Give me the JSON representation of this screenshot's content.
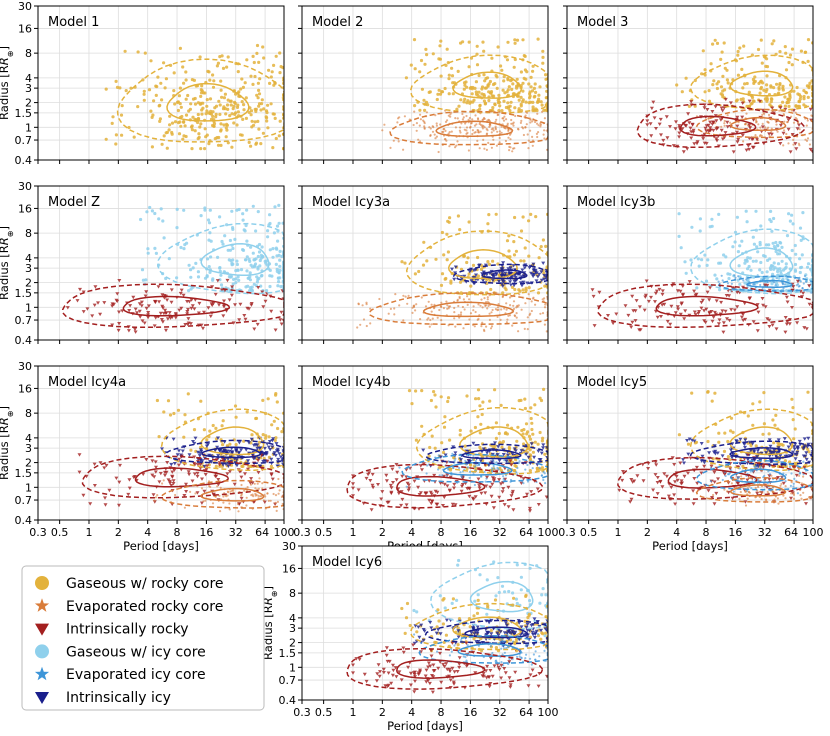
{
  "colors": {
    "gas_rocky": "#E3B23C",
    "evap_rocky": "#D97C3A",
    "intrinsic_rocky": "#A31F1F",
    "gas_icy": "#8FD0EC",
    "evap_icy": "#3D95D8",
    "intrinsic_icy": "#1A1F8C",
    "grid": "#dddddd"
  },
  "chart_data": {
    "type": "scatter",
    "xlabel": "Period [days]",
    "ylabel": "Radius [R⊕]",
    "ylabel_main": "Radius [R",
    "ylabel_sub": "⊕",
    "ylabel_end": "]",
    "xscale": "log",
    "yscale": "log",
    "xlim": [
      0.3,
      100
    ],
    "ylim": [
      0.4,
      30
    ],
    "xticks": [
      0.3,
      0.5,
      1,
      2,
      4,
      8,
      16,
      32,
      64,
      100
    ],
    "xtick_labels": [
      "0.3",
      "0.5",
      "1",
      "2",
      "4",
      "8",
      "16",
      "32",
      "64",
      "100"
    ],
    "yticks": [
      0.4,
      0.7,
      1,
      1.5,
      2,
      3,
      4,
      8,
      16,
      30
    ],
    "ytick_labels": [
      "0.4",
      "0.7",
      "1",
      "1.5",
      "2",
      "3",
      "4",
      "8",
      "16",
      "30"
    ],
    "grid": true,
    "legend": {
      "placement": "bottom-left",
      "entries": [
        {
          "key": "gas_rocky",
          "label": "Gaseous w/ rocky core",
          "marker": "circle"
        },
        {
          "key": "evap_rocky",
          "label": "Evaporated rocky core",
          "marker": "star"
        },
        {
          "key": "intrinsic_rocky",
          "label": "Intrinsically rocky",
          "marker": "triangle"
        },
        {
          "key": "gas_icy",
          "label": "Gaseous w/ icy core",
          "marker": "circle"
        },
        {
          "key": "evap_icy",
          "label": "Evaporated icy core",
          "marker": "star"
        },
        {
          "key": "intrinsic_icy",
          "label": "Intrinsically icy",
          "marker": "triangle"
        }
      ]
    },
    "panels": [
      {
        "name": "Model 1",
        "populations": [
          {
            "type": "gas_rocky",
            "n": 750,
            "P": [
              1.5,
              100
            ],
            "R": [
              0.55,
              10
            ],
            "center": [
              20,
              1.6
            ]
          }
        ]
      },
      {
        "name": "Model 2",
        "populations": [
          {
            "type": "gas_rocky",
            "n": 600,
            "P": [
              3,
              100
            ],
            "R": [
              1.6,
              12
            ],
            "center": [
              30,
              2.3
            ]
          },
          {
            "type": "evap_rocky",
            "n": 600,
            "P": [
              2,
              100
            ],
            "R": [
              0.5,
              1.6
            ],
            "center": [
              20,
              1.0
            ]
          }
        ]
      },
      {
        "name": "Model 3",
        "populations": [
          {
            "type": "gas_rocky",
            "n": 450,
            "P": [
              4,
              100
            ],
            "R": [
              1.8,
              12
            ],
            "center": [
              40,
              2.4
            ]
          },
          {
            "type": "evap_rocky",
            "n": 250,
            "P": [
              6,
              100
            ],
            "R": [
              0.6,
              1.6
            ],
            "center": [
              30,
              1.2
            ]
          },
          {
            "type": "intrinsic_rocky",
            "n": 350,
            "P": [
              2,
              100
            ],
            "R": [
              0.5,
              2.2
            ],
            "center": [
              8,
              1.0
            ]
          }
        ]
      },
      {
        "name": "Model Z",
        "populations": [
          {
            "type": "gas_icy",
            "n": 600,
            "P": [
              3,
              100
            ],
            "R": [
              1.6,
              18
            ],
            "center": [
              50,
              2.6
            ]
          },
          {
            "type": "intrinsic_rocky",
            "n": 350,
            "P": [
              0.4,
              100
            ],
            "R": [
              0.5,
              2.2
            ],
            "center": [
              8,
              1.0
            ]
          }
        ]
      },
      {
        "name": "Model Icy3a",
        "populations": [
          {
            "type": "gas_rocky",
            "n": 350,
            "P": [
              3,
              100
            ],
            "R": [
              1.5,
              14
            ],
            "center": [
              25,
              2.3
            ]
          },
          {
            "type": "intrinsic_icy",
            "n": 300,
            "P": [
              10,
              100
            ],
            "R": [
              1.8,
              3.5
            ],
            "center": [
              40,
              2.5
            ]
          },
          {
            "type": "evap_rocky",
            "n": 450,
            "P": [
              1,
              100
            ],
            "R": [
              0.5,
              1.5
            ],
            "center": [
              20,
              1.0
            ]
          }
        ]
      },
      {
        "name": "Model Icy3b",
        "populations": [
          {
            "type": "gas_icy",
            "n": 550,
            "P": [
              4,
              100
            ],
            "R": [
              1.6,
              15
            ],
            "center": [
              40,
              2.4
            ]
          },
          {
            "type": "evap_icy",
            "n": 150,
            "P": [
              10,
              100
            ],
            "R": [
              1.5,
              2.5
            ],
            "center": [
              40,
              1.9
            ]
          },
          {
            "type": "intrinsic_rocky",
            "n": 350,
            "P": [
              0.5,
              100
            ],
            "R": [
              0.5,
              2.2
            ],
            "center": [
              8,
              1.0
            ]
          }
        ]
      },
      {
        "name": "Model Icy4a",
        "populations": [
          {
            "type": "gas_rocky",
            "n": 300,
            "P": [
              4,
              100
            ],
            "R": [
              1.8,
              15
            ],
            "center": [
              40,
              2.5
            ]
          },
          {
            "type": "intrinsic_icy",
            "n": 350,
            "P": [
              5,
              100
            ],
            "R": [
              1.8,
              4
            ],
            "center": [
              35,
              2.6
            ]
          },
          {
            "type": "intrinsic_rocky",
            "n": 300,
            "P": [
              0.8,
              100
            ],
            "R": [
              0.6,
              2.5
            ],
            "center": [
              8,
              1.4
            ]
          },
          {
            "type": "evap_rocky",
            "n": 250,
            "P": [
              4,
              100
            ],
            "R": [
              0.5,
              1.3
            ],
            "center": [
              40,
              0.8
            ]
          }
        ]
      },
      {
        "name": "Model Icy4b",
        "populations": [
          {
            "type": "gas_rocky",
            "n": 450,
            "P": [
              3,
              100
            ],
            "R": [
              1.6,
              16
            ],
            "center": [
              40,
              2.4
            ]
          },
          {
            "type": "intrinsic_rocky",
            "n": 350,
            "P": [
              1,
              100
            ],
            "R": [
              0.5,
              2.2
            ],
            "center": [
              6,
              1.0
            ]
          },
          {
            "type": "evap_icy",
            "n": 250,
            "P": [
              3,
              100
            ],
            "R": [
              1.0,
              2.6
            ],
            "center": [
              20,
              1.7
            ]
          },
          {
            "type": "intrinsic_icy",
            "n": 150,
            "P": [
              5,
              100
            ],
            "R": [
              1.8,
              3.5
            ],
            "center": [
              30,
              2.5
            ]
          }
        ]
      },
      {
        "name": "Model Icy5",
        "populations": [
          {
            "type": "gas_rocky",
            "n": 300,
            "P": [
              4,
              100
            ],
            "R": [
              1.8,
              15
            ],
            "center": [
              40,
              2.5
            ]
          },
          {
            "type": "intrinsic_icy",
            "n": 300,
            "P": [
              4,
              100
            ],
            "R": [
              1.8,
              4
            ],
            "center": [
              40,
              2.5
            ]
          },
          {
            "type": "intrinsic_rocky",
            "n": 300,
            "P": [
              1,
              100
            ],
            "R": [
              0.6,
              2.5
            ],
            "center": [
              8,
              1.3
            ]
          },
          {
            "type": "evap_icy",
            "n": 200,
            "P": [
              6,
              100
            ],
            "R": [
              0.8,
              2.2
            ],
            "center": [
              30,
              1.4
            ]
          },
          {
            "type": "evap_rocky",
            "n": 200,
            "P": [
              6,
              100
            ],
            "R": [
              0.6,
              1.4
            ],
            "center": [
              30,
              0.9
            ]
          }
        ]
      },
      {
        "name": "Model Icy6",
        "populations": [
          {
            "type": "gas_icy",
            "n": 150,
            "P": [
              4,
              100
            ],
            "R": [
              2,
              20
            ],
            "center": [
              50,
              8
            ]
          },
          {
            "type": "gas_rocky",
            "n": 300,
            "P": [
              3,
              100
            ],
            "R": [
              1.6,
              8
            ],
            "center": [
              30,
              2.5
            ]
          },
          {
            "type": "intrinsic_icy",
            "n": 300,
            "P": [
              4,
              100
            ],
            "R": [
              1.8,
              4
            ],
            "center": [
              40,
              2.6
            ]
          },
          {
            "type": "evap_icy",
            "n": 200,
            "P": [
              4,
              100
            ],
            "R": [
              1.0,
              2.6
            ],
            "center": [
              30,
              1.6
            ]
          },
          {
            "type": "intrinsic_rocky",
            "n": 300,
            "P": [
              1,
              100
            ],
            "R": [
              0.5,
              2.0
            ],
            "center": [
              6,
              0.9
            ]
          }
        ]
      }
    ]
  }
}
